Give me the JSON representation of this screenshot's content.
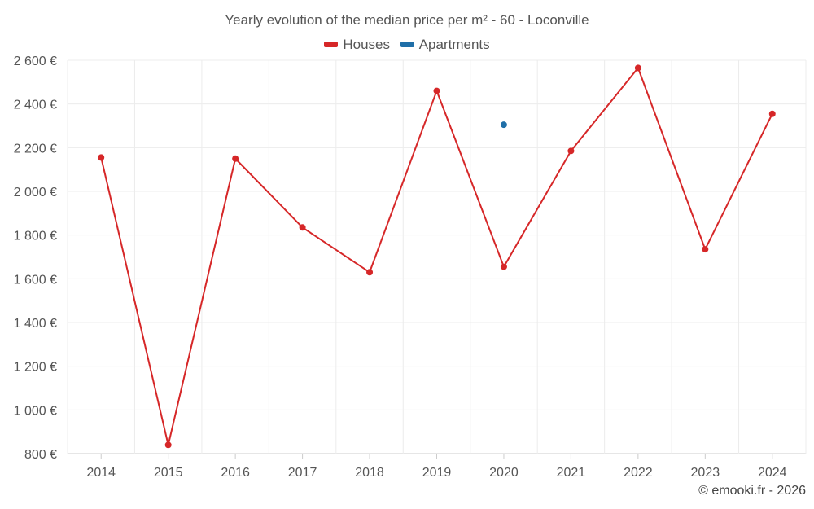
{
  "chart_data": {
    "type": "line",
    "title": "Yearly evolution of the median price per m² - 60 - Loconville",
    "categories": [
      "2014",
      "2015",
      "2016",
      "2017",
      "2018",
      "2019",
      "2020",
      "2021",
      "2022",
      "2023",
      "2024"
    ],
    "series": [
      {
        "name": "Houses",
        "color": "#d62728",
        "values": [
          2155,
          840,
          2150,
          1835,
          1630,
          2460,
          1655,
          2185,
          2565,
          1735,
          2355
        ]
      },
      {
        "name": "Apartments",
        "color": "#1f6fa8",
        "values": [
          null,
          null,
          null,
          null,
          null,
          null,
          2305,
          null,
          null,
          null,
          null
        ]
      }
    ],
    "ylim": [
      800,
      2600
    ],
    "yticks": [
      800,
      1000,
      1200,
      1400,
      1600,
      1800,
      2000,
      2200,
      2400,
      2600
    ],
    "ytick_labels": [
      "800 €",
      "1 000 €",
      "1 200 €",
      "1 400 €",
      "1 600 €",
      "1 800 €",
      "2 000 €",
      "2 200 €",
      "2 400 €",
      "2 600 €"
    ],
    "xlabel": "",
    "ylabel": "",
    "grid": true,
    "legend_position": "top-center"
  },
  "credit": "© emooki.fr - 2026"
}
